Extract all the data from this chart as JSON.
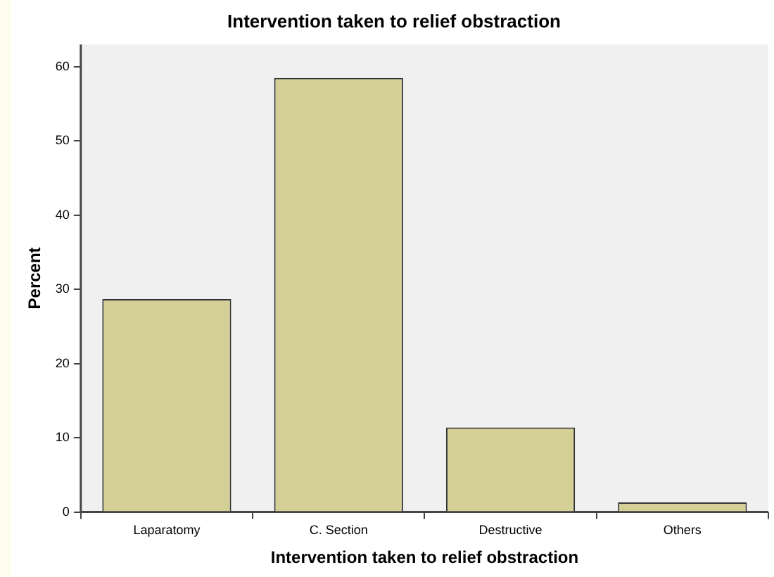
{
  "chart_data": {
    "type": "bar",
    "title": "Intervention taken to relief obstraction",
    "xlabel": "Intervention taken to relief obstraction",
    "ylabel": "Percent",
    "categories": [
      "Laparatomy",
      "C. Section",
      "Destructive",
      "Others"
    ],
    "values": [
      28.7,
      58.5,
      11.4,
      1.3
    ],
    "color": "#d3cf97",
    "ylim": [
      0,
      63
    ],
    "yticks": [
      0,
      10,
      20,
      30,
      40,
      50,
      60
    ],
    "grid": false,
    "legend": false
  }
}
